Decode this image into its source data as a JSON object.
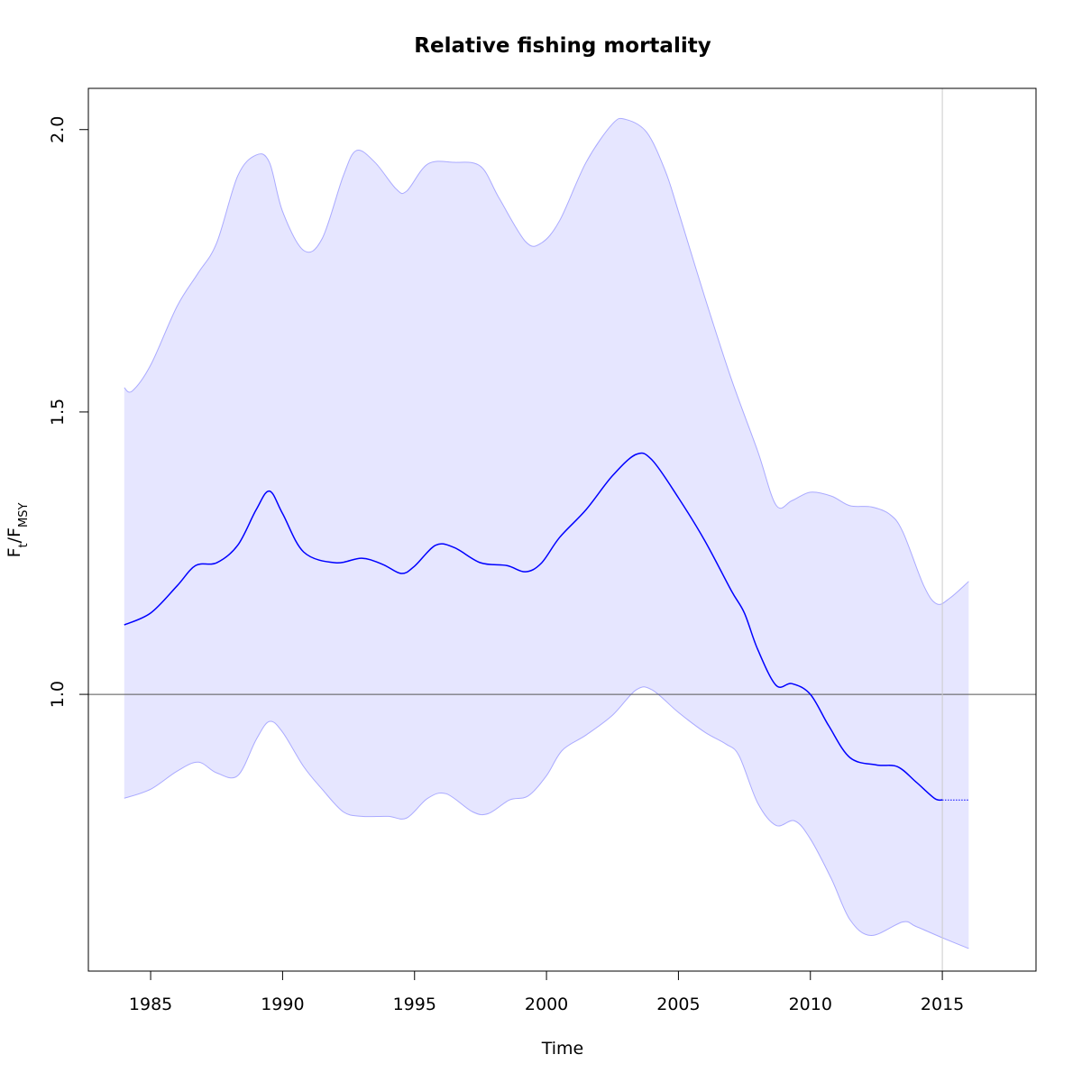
{
  "chart_data": {
    "type": "band_line",
    "title": "Relative fishing mortality",
    "xlabel": "Time",
    "ylabel_parts": [
      {
        "text": "F",
        "sub": false
      },
      {
        "text": "t",
        "sub": true
      },
      {
        "text": "/F",
        "sub": false
      },
      {
        "text": "MSY",
        "sub": true
      }
    ],
    "xlim": [
      1982.64,
      2018.55
    ],
    "ylim": [
      0.51,
      2.073
    ],
    "xticks": [
      1985,
      1990,
      1995,
      2000,
      2005,
      2010,
      2015
    ],
    "yticks": [
      {
        "value": 1,
        "label": "1.0"
      },
      {
        "value": 1.5,
        "label": "1.5"
      },
      {
        "value": 2,
        "label": "2.0"
      }
    ],
    "hline": 1,
    "vline": 2015,
    "band_fill": "#e6e6ff",
    "series": [
      {
        "role": "estimate",
        "color": "#0000ff",
        "x": [
          1984,
          1985,
          1986,
          1986.7,
          1987.5,
          1988.3,
          1989,
          1989.5,
          1990,
          1990.8,
          1992,
          1993,
          1993.8,
          1994.5,
          1995,
          1995.8,
          1996.5,
          1997.5,
          1998.5,
          1999.2,
          1999.8,
          2000.5,
          2001.5,
          2002.5,
          2003.4,
          2004,
          2005,
          2006,
          2007,
          2007.5,
          2008,
          2008.7,
          2009.3,
          2010,
          2010.7,
          2011.5,
          2012.5,
          2013.3,
          2014,
          2014.7,
          2015,
          2016
        ],
        "values": [
          1.123,
          1.144,
          1.192,
          1.228,
          1.233,
          1.264,
          1.327,
          1.36,
          1.32,
          1.252,
          1.233,
          1.241,
          1.23,
          1.214,
          1.227,
          1.264,
          1.26,
          1.233,
          1.228,
          1.217,
          1.232,
          1.278,
          1.327,
          1.387,
          1.425,
          1.415,
          1.348,
          1.272,
          1.184,
          1.144,
          1.08,
          1.016,
          1.019,
          1.0,
          0.944,
          0.888,
          0.875,
          0.872,
          0.845,
          0.816,
          0.813,
          0.813
        ]
      },
      {
        "role": "upper",
        "color": "#aaaaff",
        "x": [
          1984,
          1984.3,
          1985,
          1986,
          1986.8,
          1987.5,
          1988.3,
          1989,
          1989.5,
          1990,
          1990.8,
          1991.5,
          1992.3,
          1992.8,
          1993.5,
          1994.3,
          1994.7,
          1995.5,
          1996.5,
          1997.5,
          1998.2,
          1999.2,
          1999.8,
          2000.5,
          2001.5,
          2002.5,
          2003,
          2003.8,
          2004.5,
          2005,
          2006,
          2007,
          2008,
          2008.7,
          2009.3,
          2010,
          2010.8,
          2011.5,
          2012.3,
          2013,
          2013.5,
          2014.3,
          2014.8,
          2015.3,
          2016
        ],
        "values": [
          1.543,
          1.537,
          1.583,
          1.687,
          1.746,
          1.799,
          1.918,
          1.955,
          1.942,
          1.855,
          1.786,
          1.807,
          1.918,
          1.963,
          1.942,
          1.895,
          1.891,
          1.939,
          1.942,
          1.935,
          1.879,
          1.802,
          1.799,
          1.839,
          1.942,
          2.01,
          2.018,
          1.995,
          1.927,
          1.855,
          1.703,
          1.559,
          1.431,
          1.335,
          1.343,
          1.358,
          1.351,
          1.334,
          1.332,
          1.319,
          1.288,
          1.192,
          1.16,
          1.171,
          1.2
        ]
      },
      {
        "role": "lower",
        "color": "#aaaaff",
        "x": [
          1984,
          1985,
          1986,
          1986.8,
          1987.5,
          1988.3,
          1989,
          1989.5,
          1990,
          1990.8,
          1991.5,
          1992.3,
          1993,
          1994,
          1994.7,
          1995.5,
          1996.2,
          1997.2,
          1997.8,
          1998.6,
          1999.3,
          2000,
          2000.6,
          2001.5,
          2002.5,
          2003.4,
          2004,
          2005,
          2006,
          2006.8,
          2007.3,
          2008,
          2008.7,
          2009.4,
          2010,
          2010.8,
          2011.5,
          2012.3,
          2013.5,
          2014,
          2015,
          2016
        ],
        "values": [
          0.816,
          0.832,
          0.864,
          0.88,
          0.861,
          0.856,
          0.92,
          0.952,
          0.933,
          0.872,
          0.832,
          0.792,
          0.784,
          0.784,
          0.781,
          0.816,
          0.824,
          0.792,
          0.789,
          0.813,
          0.82,
          0.856,
          0.901,
          0.928,
          0.963,
          1.008,
          1.008,
          0.968,
          0.933,
          0.912,
          0.891,
          0.808,
          0.768,
          0.776,
          0.744,
          0.673,
          0.601,
          0.573,
          0.597,
          0.589,
          0.569,
          0.55
        ]
      }
    ]
  }
}
